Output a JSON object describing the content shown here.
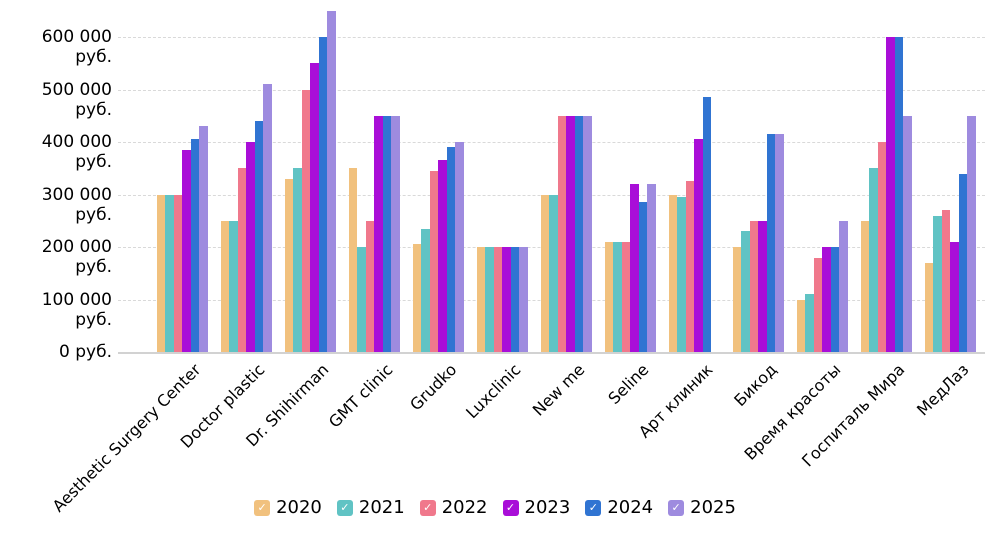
{
  "chart_data": {
    "type": "bar",
    "title": "",
    "xlabel": "",
    "ylabel": "",
    "ylim": [
      0,
      650000
    ],
    "grid": "horizontal-dashed",
    "legend_position": "bottom",
    "y_ticks": [
      {
        "value": 0,
        "label": "0 руб."
      },
      {
        "value": 100000,
        "label": "100 000 руб."
      },
      {
        "value": 200000,
        "label": "200 000 руб."
      },
      {
        "value": 300000,
        "label": "300 000 руб."
      },
      {
        "value": 400000,
        "label": "400 000 руб."
      },
      {
        "value": 500000,
        "label": "500 000 руб."
      },
      {
        "value": 600000,
        "label": "600 000 руб."
      }
    ],
    "categories": [
      "Aesthetic Surgery Center",
      "Doctor plastic",
      "Dr. Shihirman",
      "GMT clinic",
      "Grudko",
      "Luxclinic",
      "New me",
      "Seline",
      "Арт клиник",
      "Бикод",
      "Время красоты",
      "Госпиталь Мира",
      "МедЛаз"
    ],
    "series": [
      {
        "name": "2020",
        "color": "#F1C17E",
        "values": [
          300000,
          250000,
          330000,
          350000,
          205000,
          200000,
          300000,
          210000,
          300000,
          200000,
          100000,
          250000,
          170000
        ]
      },
      {
        "name": "2021",
        "color": "#60C3C4",
        "values": [
          300000,
          250000,
          350000,
          200000,
          235000,
          200000,
          300000,
          210000,
          295000,
          230000,
          110000,
          350000,
          260000
        ]
      },
      {
        "name": "2022",
        "color": "#F0788C",
        "values": [
          300000,
          350000,
          500000,
          250000,
          345000,
          200000,
          450000,
          210000,
          325000,
          250000,
          180000,
          400000,
          270000
        ]
      },
      {
        "name": "2023",
        "color": "#A90ED8",
        "values": [
          385000,
          400000,
          550000,
          450000,
          365000,
          200000,
          450000,
          320000,
          405000,
          250000,
          200000,
          600000,
          210000
        ]
      },
      {
        "name": "2024",
        "color": "#3074D2",
        "values": [
          405000,
          440000,
          600000,
          450000,
          390000,
          200000,
          450000,
          285000,
          485000,
          415000,
          200000,
          600000,
          340000
        ]
      },
      {
        "name": "2025",
        "color": "#9E8BDF",
        "values": [
          430000,
          510000,
          650000,
          450000,
          400000,
          200000,
          450000,
          320000,
          null,
          415000,
          250000,
          450000,
          450000
        ]
      }
    ],
    "legend_check_glyph": "✓"
  }
}
